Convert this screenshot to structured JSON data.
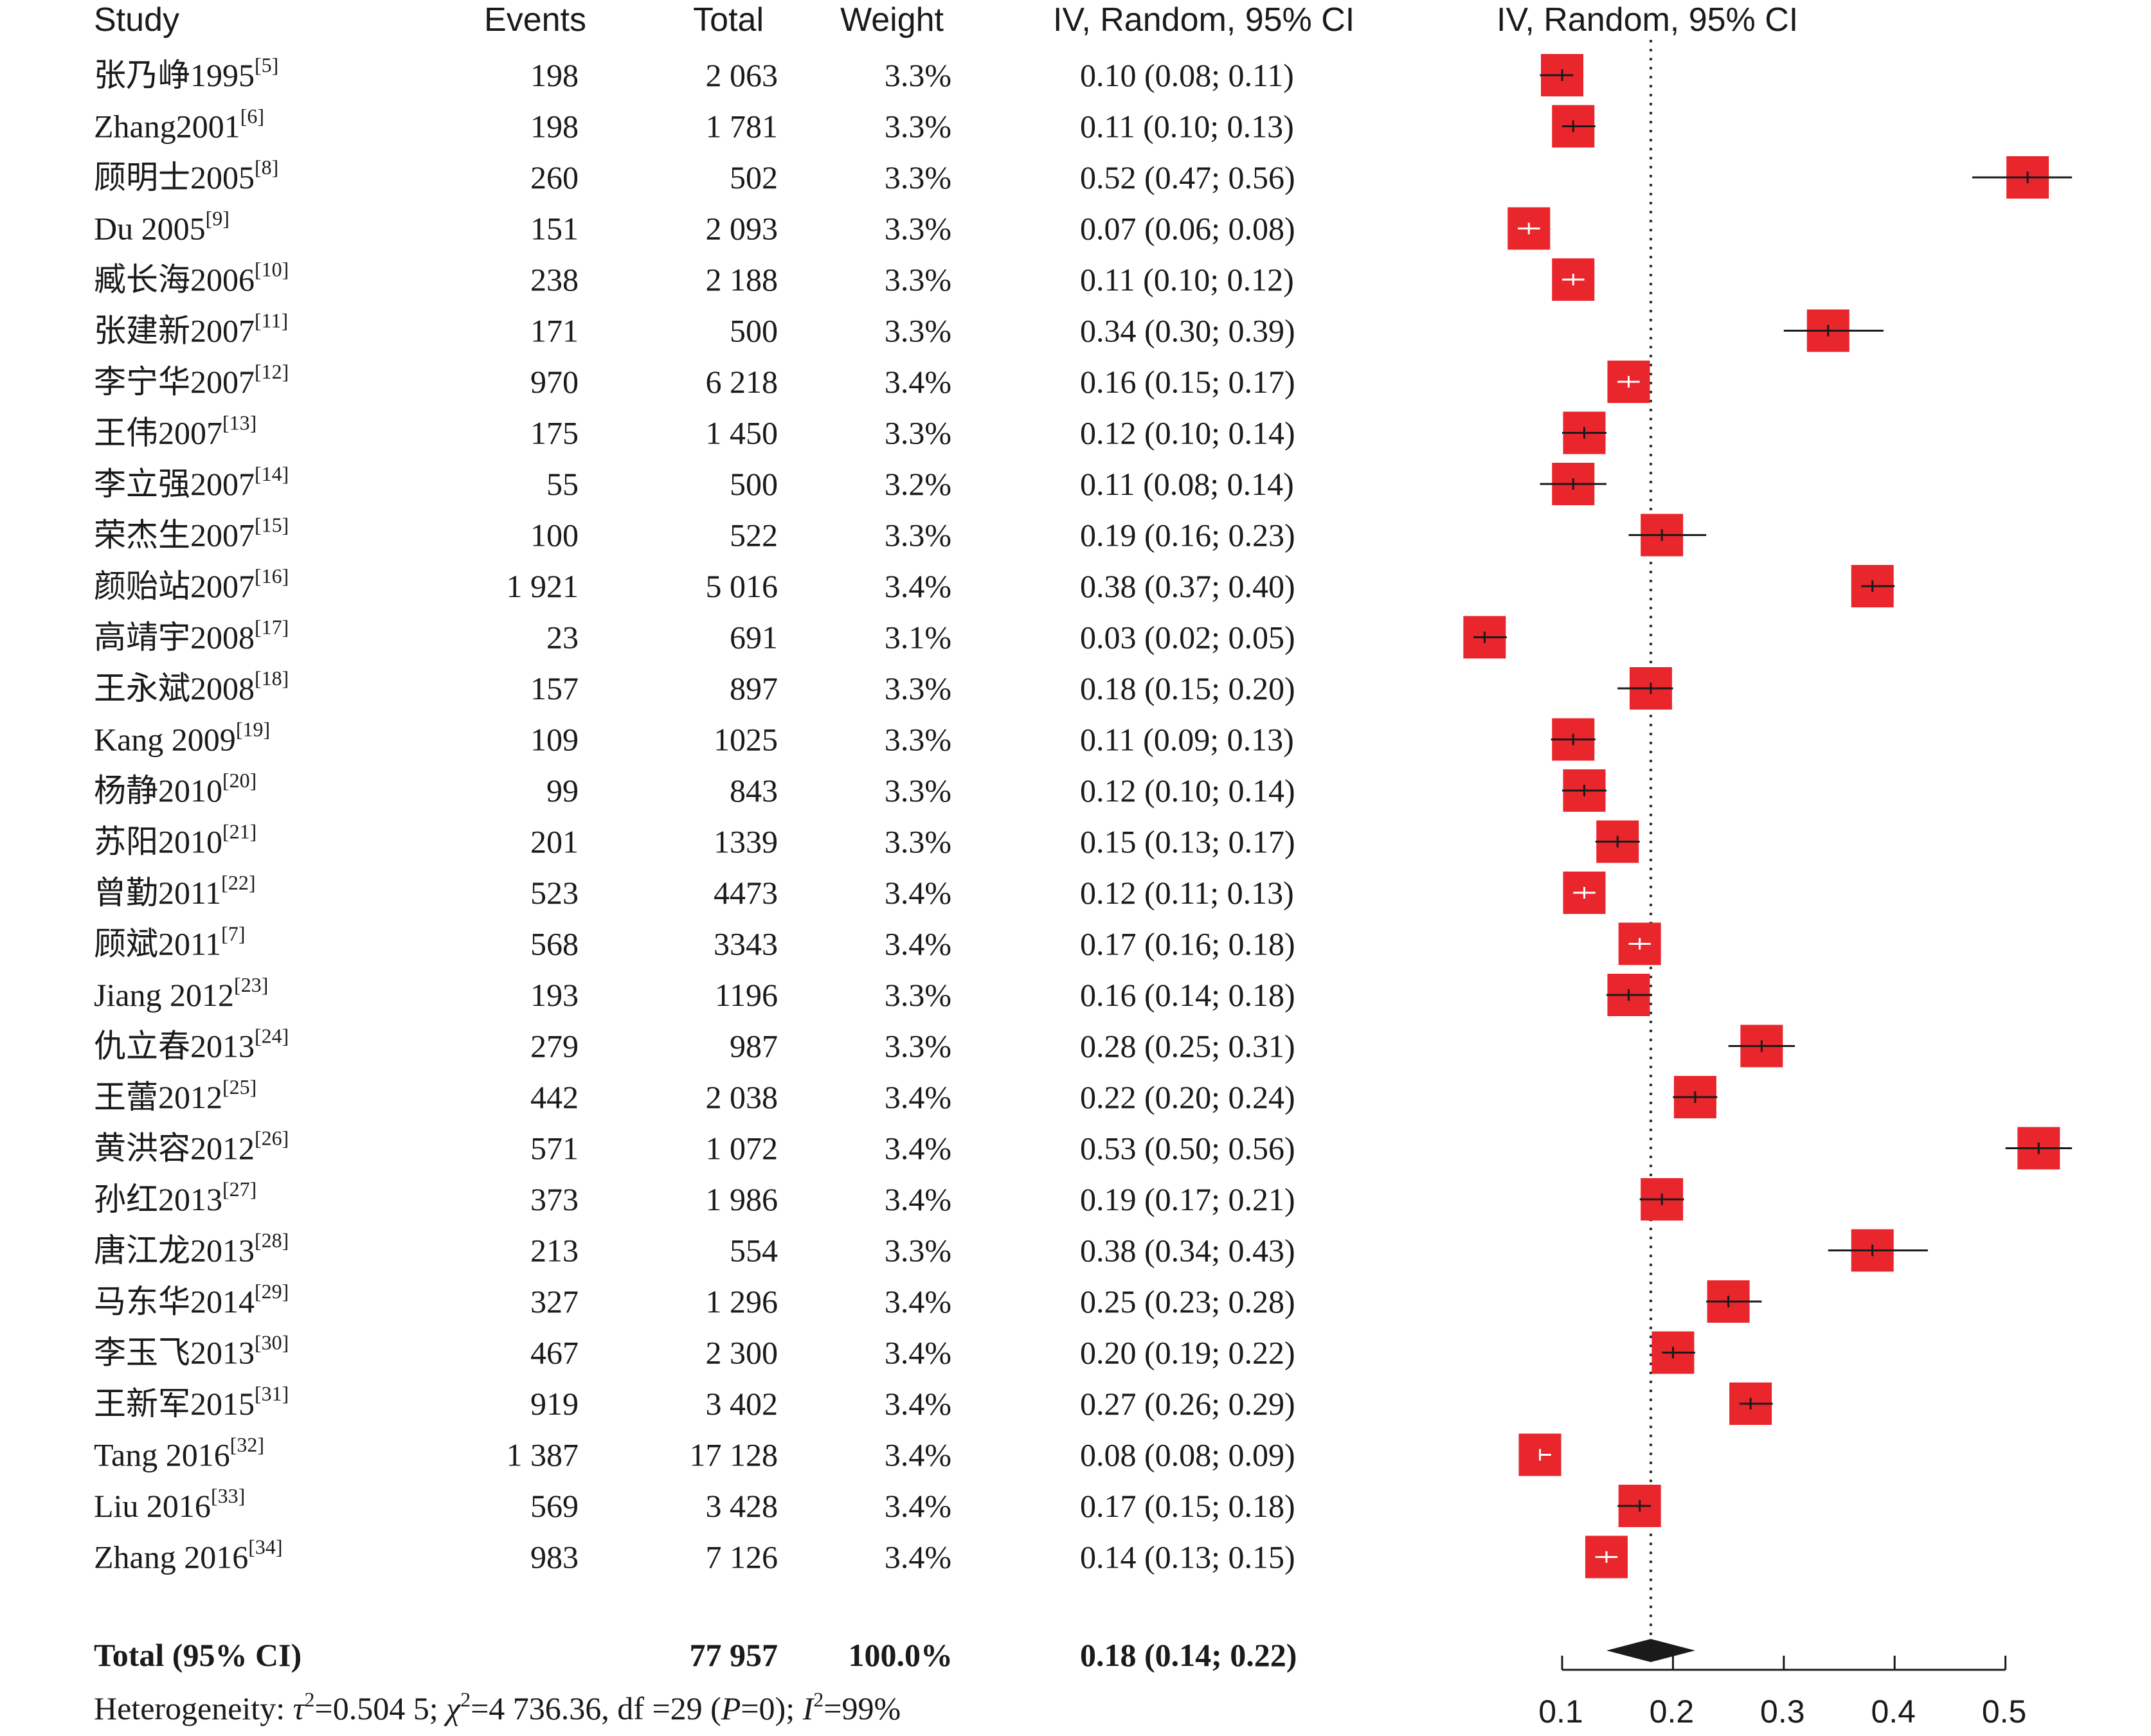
{
  "headers": {
    "study": "Study",
    "events": "Events",
    "total": "Total",
    "weight": "Weight",
    "ci": "IV, Random, 95% CI",
    "plot": "IV, Random, 95% CI"
  },
  "chart_data": {
    "type": "forest",
    "xlim": [
      0.1,
      0.5
    ],
    "ticks": [
      0.1,
      0.2,
      0.3,
      0.4,
      0.5
    ],
    "tick_labels": [
      "0.1",
      "0.2",
      "0.3",
      "0.4",
      "0.5"
    ],
    "reference_line": 0.18,
    "marker_color": "#e8262c",
    "studies": [
      {
        "label": "张乃峥1995",
        "ref": "[5]",
        "events": "198",
        "total": "2 063",
        "weight": "3.3%",
        "ci_text": "0.10 (0.08; 0.11)",
        "est": 0.1,
        "lo": 0.08,
        "hi": 0.11
      },
      {
        "label": "Zhang2001",
        "ref": "[6]",
        "events": "198",
        "total": "1 781",
        "weight": "3.3%",
        "ci_text": "0.11 (0.10; 0.13)",
        "est": 0.11,
        "lo": 0.1,
        "hi": 0.13
      },
      {
        "label": "顾明士2005",
        "ref": "[8]",
        "events": "260",
        "total": "502",
        "weight": "3.3%",
        "ci_text": "0.52 (0.47; 0.56)",
        "est": 0.52,
        "lo": 0.47,
        "hi": 0.56
      },
      {
        "label": "Du 2005",
        "ref": "[9]",
        "events": "151",
        "total": "2 093",
        "weight": "3.3%",
        "ci_text": "0.07 (0.06; 0.08)",
        "est": 0.07,
        "lo": 0.06,
        "hi": 0.08
      },
      {
        "label": "臧长海2006",
        "ref": "[10]",
        "events": "238",
        "total": "2 188",
        "weight": "3.3%",
        "ci_text": "0.11 (0.10; 0.12)",
        "est": 0.11,
        "lo": 0.1,
        "hi": 0.12
      },
      {
        "label": "张建新2007",
        "ref": "[11]",
        "events": "171",
        "total": "500",
        "weight": "3.3%",
        "ci_text": "0.34 (0.30; 0.39)",
        "est": 0.34,
        "lo": 0.3,
        "hi": 0.39
      },
      {
        "label": "李宁华2007",
        "ref": "[12]",
        "events": "970",
        "total": "6 218",
        "weight": "3.4%",
        "ci_text": "0.16 (0.15; 0.17)",
        "est": 0.16,
        "lo": 0.15,
        "hi": 0.17
      },
      {
        "label": "王伟2007",
        "ref": "[13]",
        "events": "175",
        "total": "1 450",
        "weight": "3.3%",
        "ci_text": "0.12 (0.10; 0.14)",
        "est": 0.12,
        "lo": 0.1,
        "hi": 0.14
      },
      {
        "label": "李立强2007",
        "ref": "[14]",
        "events": "55",
        "total": "500",
        "weight": "3.2%",
        "ci_text": "0.11 (0.08; 0.14)",
        "est": 0.11,
        "lo": 0.08,
        "hi": 0.14
      },
      {
        "label": "荣杰生2007",
        "ref": "[15]",
        "events": "100",
        "total": "522",
        "weight": "3.3%",
        "ci_text": "0.19 (0.16; 0.23)",
        "est": 0.19,
        "lo": 0.16,
        "hi": 0.23
      },
      {
        "label": "颜贻站2007",
        "ref": "[16]",
        "events": "1 921",
        "total": "5 016",
        "weight": "3.4%",
        "ci_text": "0.38 (0.37; 0.40)",
        "est": 0.38,
        "lo": 0.37,
        "hi": 0.4
      },
      {
        "label": "高靖宇2008",
        "ref": "[17]",
        "events": "23",
        "total": "691",
        "weight": "3.1%",
        "ci_text": "0.03 (0.02; 0.05)",
        "est": 0.03,
        "lo": 0.02,
        "hi": 0.05
      },
      {
        "label": "王永斌2008",
        "ref": "[18]",
        "events": "157",
        "total": "897",
        "weight": "3.3%",
        "ci_text": "0.18 (0.15; 0.20)",
        "est": 0.18,
        "lo": 0.15,
        "hi": 0.2
      },
      {
        "label": "Kang 2009",
        "ref": "[19]",
        "events": "109",
        "total": "1025",
        "weight": "3.3%",
        "ci_text": "0.11 (0.09; 0.13)",
        "est": 0.11,
        "lo": 0.09,
        "hi": 0.13
      },
      {
        "label": "杨静2010",
        "ref": "[20]",
        "events": "99",
        "total": "843",
        "weight": "3.3%",
        "ci_text": "0.12 (0.10; 0.14)",
        "est": 0.12,
        "lo": 0.1,
        "hi": 0.14
      },
      {
        "label": "苏阳2010",
        "ref": "[21]",
        "events": "201",
        "total": "1339",
        "weight": "3.3%",
        "ci_text": "0.15 (0.13; 0.17)",
        "est": 0.15,
        "lo": 0.13,
        "hi": 0.17
      },
      {
        "label": "曾勤2011",
        "ref": "[22]",
        "events": "523",
        "total": "4473",
        "weight": "3.4%",
        "ci_text": "0.12 (0.11; 0.13)",
        "est": 0.12,
        "lo": 0.11,
        "hi": 0.13
      },
      {
        "label": "顾斌2011",
        "ref": "[7]",
        "events": "568",
        "total": "3343",
        "weight": "3.4%",
        "ci_text": "0.17 (0.16; 0.18)",
        "est": 0.17,
        "lo": 0.16,
        "hi": 0.18
      },
      {
        "label": "Jiang 2012",
        "ref": "[23]",
        "events": "193",
        "total": "1196",
        "weight": "3.3%",
        "ci_text": "0.16 (0.14; 0.18)",
        "est": 0.16,
        "lo": 0.14,
        "hi": 0.18
      },
      {
        "label": "仇立春2013",
        "ref": "[24]",
        "events": "279",
        "total": "987",
        "weight": "3.3%",
        "ci_text": "0.28 (0.25; 0.31)",
        "est": 0.28,
        "lo": 0.25,
        "hi": 0.31
      },
      {
        "label": "王蕾2012",
        "ref": "[25]",
        "events": "442",
        "total": "2 038",
        "weight": "3.4%",
        "ci_text": "0.22 (0.20; 0.24)",
        "est": 0.22,
        "lo": 0.2,
        "hi": 0.24
      },
      {
        "label": "黄洪容2012",
        "ref": "[26]",
        "events": "571",
        "total": "1 072",
        "weight": "3.4%",
        "ci_text": "0.53 (0.50; 0.56)",
        "est": 0.53,
        "lo": 0.5,
        "hi": 0.56
      },
      {
        "label": "孙红2013",
        "ref": "[27]",
        "events": "373",
        "total": "1 986",
        "weight": "3.4%",
        "ci_text": "0.19 (0.17; 0.21)",
        "est": 0.19,
        "lo": 0.17,
        "hi": 0.21
      },
      {
        "label": "唐江龙2013",
        "ref": "[28]",
        "events": "213",
        "total": "554",
        "weight": "3.3%",
        "ci_text": "0.38 (0.34; 0.43)",
        "est": 0.38,
        "lo": 0.34,
        "hi": 0.43
      },
      {
        "label": "马东华2014",
        "ref": "[29]",
        "events": "327",
        "total": "1 296",
        "weight": "3.4%",
        "ci_text": "0.25 (0.23; 0.28)",
        "est": 0.25,
        "lo": 0.23,
        "hi": 0.28
      },
      {
        "label": "李玉飞2013",
        "ref": "[30]",
        "events": "467",
        "total": "2 300",
        "weight": "3.4%",
        "ci_text": "0.20 (0.19; 0.22)",
        "est": 0.2,
        "lo": 0.19,
        "hi": 0.22
      },
      {
        "label": "王新军2015",
        "ref": "[31]",
        "events": "919",
        "total": "3 402",
        "weight": "3.4%",
        "ci_text": "0.27 (0.26; 0.29)",
        "est": 0.27,
        "lo": 0.26,
        "hi": 0.29
      },
      {
        "label": "Tang 2016",
        "ref": "[32]",
        "events": "1 387",
        "total": "17 128",
        "weight": "3.4%",
        "ci_text": "0.08 (0.08; 0.09)",
        "est": 0.08,
        "lo": 0.08,
        "hi": 0.09
      },
      {
        "label": "Liu 2016",
        "ref": "[33]",
        "events": "569",
        "total": "3 428",
        "weight": "3.4%",
        "ci_text": "0.17 (0.15; 0.18)",
        "est": 0.17,
        "lo": 0.15,
        "hi": 0.18
      },
      {
        "label": "Zhang 2016",
        "ref": "[34]",
        "events": "983",
        "total": "7 126",
        "weight": "3.4%",
        "ci_text": "0.14 (0.13; 0.15)",
        "est": 0.14,
        "lo": 0.13,
        "hi": 0.15
      }
    ],
    "pooled": {
      "label": "Total (95% CI)",
      "total": "77 957",
      "weight": "100.0%",
      "ci_text": "0.18 (0.14; 0.22)",
      "est": 0.18,
      "lo": 0.14,
      "hi": 0.22
    },
    "heterogeneity": {
      "prefix": "Heterogeneity: ",
      "tau_sym": "τ",
      "tau_val": "=0.504 5; ",
      "chi_sym": "χ",
      "chi_val": "=4 736.36, df =29 (",
      "p_sym": "P",
      "p_val": "=0); ",
      "i_sym": "I",
      "i_val": "=99%",
      "sup": "2"
    }
  }
}
